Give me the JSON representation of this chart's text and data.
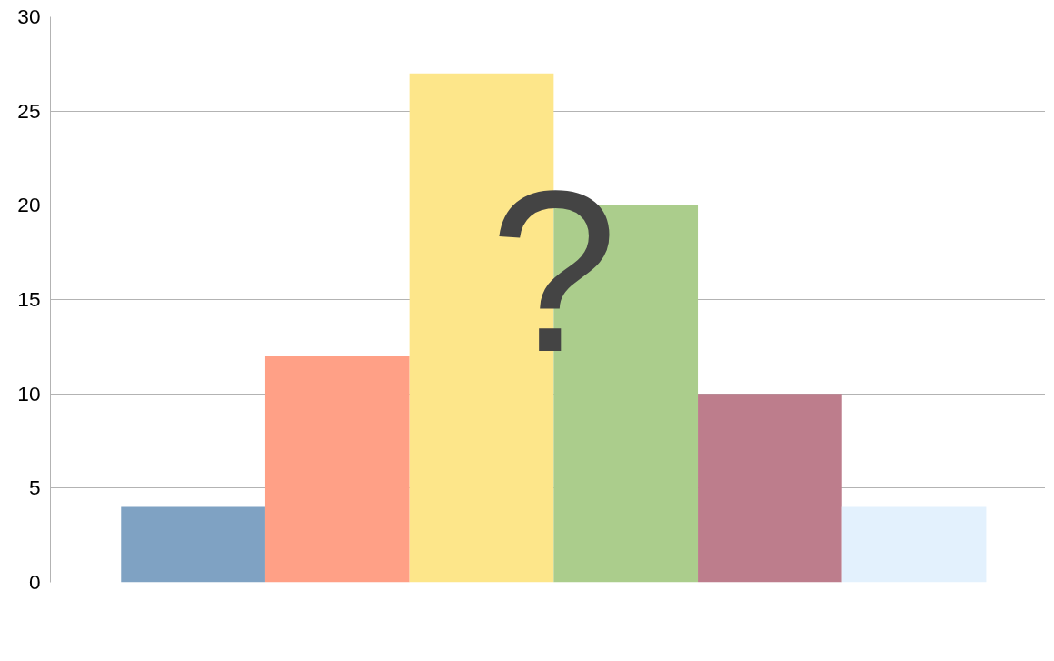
{
  "chart_data": {
    "type": "bar",
    "categories": [
      null,
      null,
      null,
      null,
      null,
      null
    ],
    "values": [
      4,
      12,
      27,
      20,
      10,
      4
    ],
    "colors": [
      "#7fa2c3",
      "#ffa086",
      "#fde68a",
      "#abcd8c",
      "#bd7d8c",
      "#e3f1fd"
    ],
    "ylim": [
      0,
      30
    ],
    "yticks": [
      0,
      5,
      10,
      15,
      20,
      25,
      30
    ],
    "grid": "y",
    "annotations": [
      "?"
    ]
  }
}
